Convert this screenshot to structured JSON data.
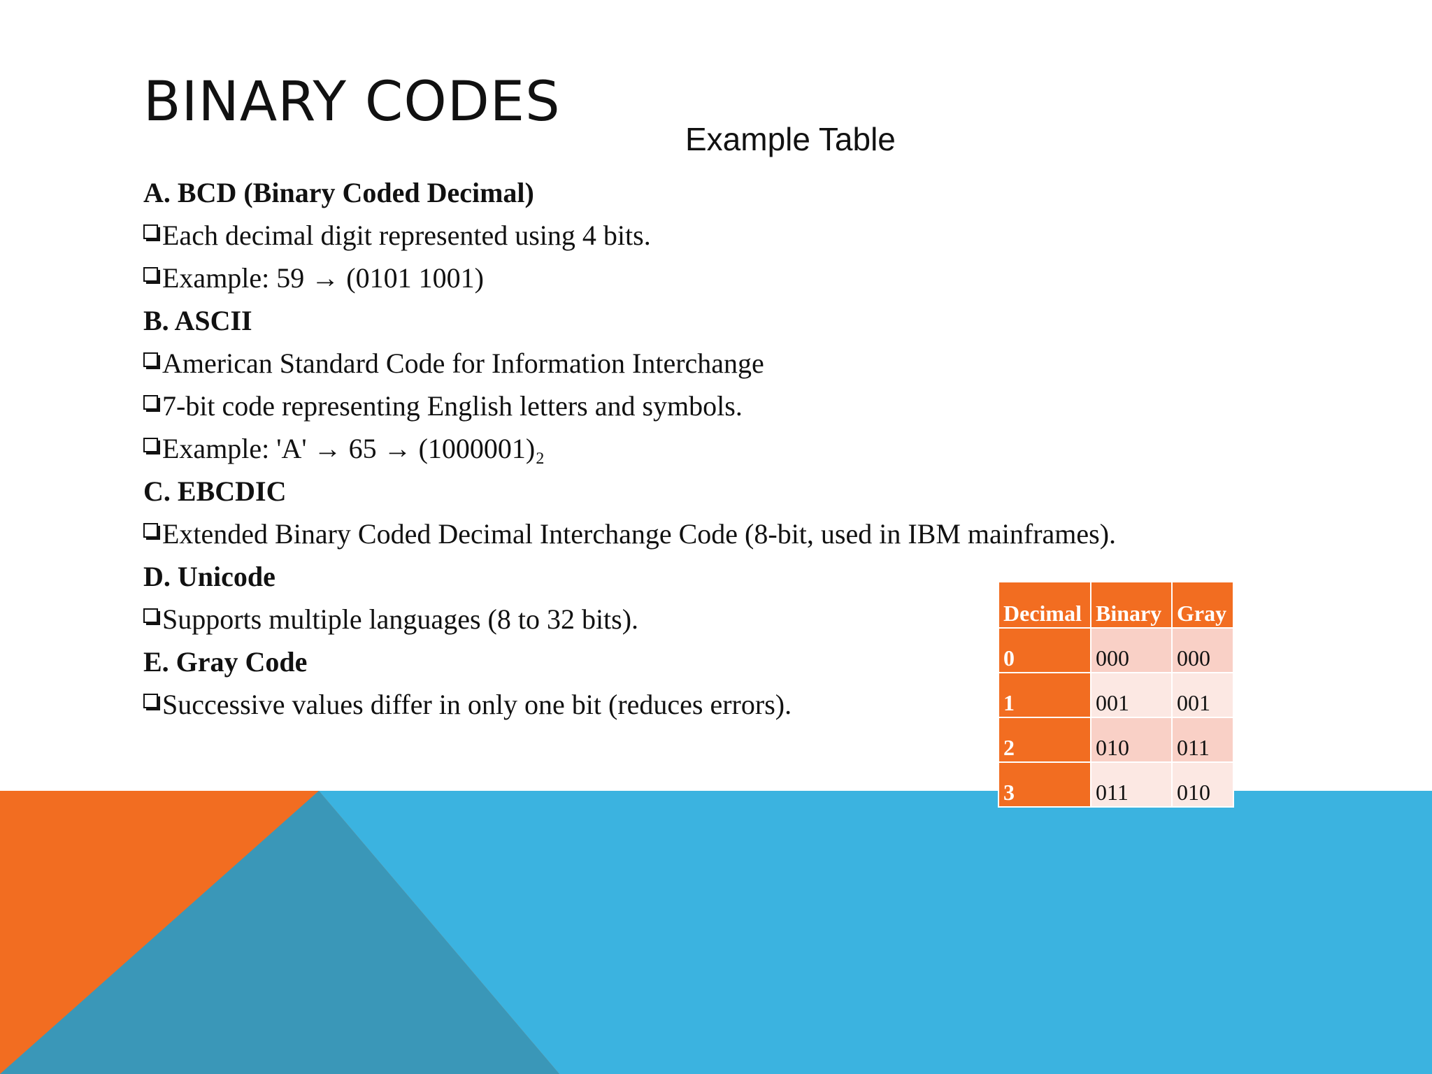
{
  "slide": {
    "title": "BINARY CODES",
    "example_title": "Example Table",
    "colors": {
      "orange": "#f26d21",
      "blue": "#3bb3e0",
      "dark_blue": "#3a97b8",
      "table_row_light": "#f9d0c6",
      "table_row_lighter": "#fce8e3"
    }
  },
  "content": {
    "lines": [
      {
        "type": "heading",
        "text": "A. BCD (Binary Coded Decimal)"
      },
      {
        "type": "bullet",
        "text": "Each decimal digit represented using 4 bits."
      },
      {
        "type": "bullet",
        "text": "Example: 59 → (0101 1001)"
      },
      {
        "type": "heading",
        "text": "B. ASCII"
      },
      {
        "type": "bullet",
        "text": "American Standard Code for Information Interchange"
      },
      {
        "type": "bullet",
        "text": "7-bit code representing English letters and symbols."
      },
      {
        "type": "bullet",
        "text": "Example: 'A' → 65 → (1000001)₂"
      },
      {
        "type": "heading",
        "text": "C. EBCDIC"
      },
      {
        "type": "bullet",
        "text": "Extended Binary Coded Decimal Interchange Code (8-bit, used in IBM mainframes)."
      },
      {
        "type": "heading",
        "text": "D. Unicode"
      },
      {
        "type": "bullet",
        "text": "Supports multiple languages (8 to 32 bits)."
      },
      {
        "type": "heading",
        "text": "E. Gray Code"
      },
      {
        "type": "bullet",
        "text": "Successive values differ in only one bit (reduces errors)."
      }
    ]
  },
  "table": {
    "headers": [
      "Decimal",
      "Binary",
      "Gray"
    ],
    "rows": [
      [
        "0",
        "000",
        "000"
      ],
      [
        "1",
        "001",
        "001"
      ],
      [
        "2",
        "010",
        "011"
      ],
      [
        "3",
        "011",
        "010"
      ]
    ]
  }
}
